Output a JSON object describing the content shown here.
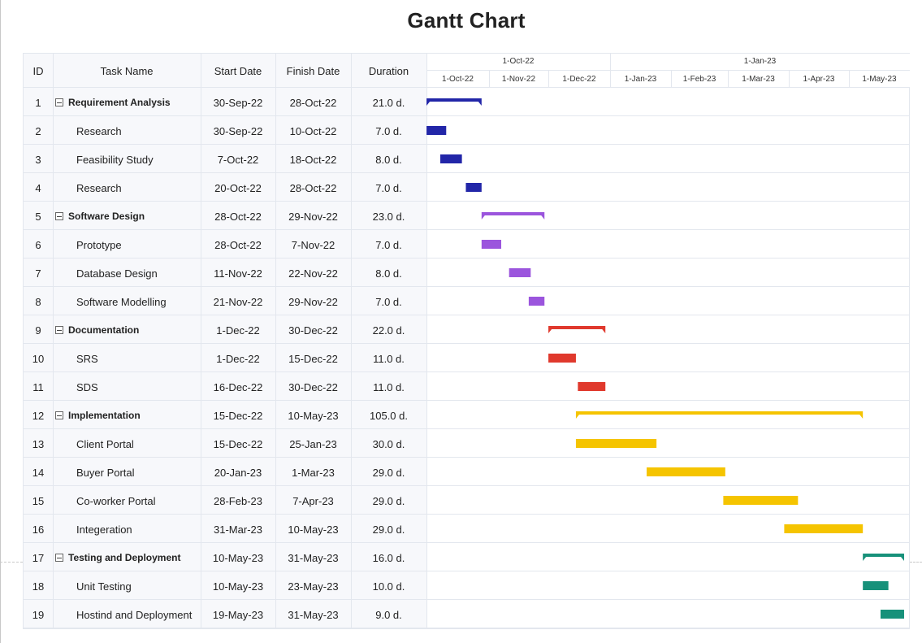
{
  "title": "Gantt Chart",
  "columns": {
    "id": "ID",
    "task": "Task Name",
    "start": "Start Date",
    "finish": "Finish Date",
    "duration": "Duration"
  },
  "timeline": {
    "top_ticks": [
      "1-Oct-22",
      "1-Jan-23"
    ],
    "bottom_ticks": [
      "1-Oct-22",
      "1-Nov-22",
      "1-Dec-22",
      "1-Jan-23",
      "1-Feb-23",
      "1-Mar-23",
      "1-Apr-23",
      "1-May-23"
    ]
  },
  "tasks": [
    {
      "id": "1",
      "name": "Requirement Analysis",
      "start": "30-Sep-22",
      "finish": "28-Oct-22",
      "duration": "21.0 d.",
      "summary": true
    },
    {
      "id": "2",
      "name": "Research",
      "start": "30-Sep-22",
      "finish": "10-Oct-22",
      "duration": "7.0 d.",
      "summary": false
    },
    {
      "id": "3",
      "name": "Feasibility Study",
      "start": "7-Oct-22",
      "finish": "18-Oct-22",
      "duration": "8.0 d.",
      "summary": false
    },
    {
      "id": "4",
      "name": "Research",
      "start": "20-Oct-22",
      "finish": "28-Oct-22",
      "duration": "7.0 d.",
      "summary": false
    },
    {
      "id": "5",
      "name": "Software Design",
      "start": "28-Oct-22",
      "finish": "29-Nov-22",
      "duration": "23.0 d.",
      "summary": true
    },
    {
      "id": "6",
      "name": "Prototype",
      "start": "28-Oct-22",
      "finish": "7-Nov-22",
      "duration": "7.0 d.",
      "summary": false
    },
    {
      "id": "7",
      "name": "Database Design",
      "start": "11-Nov-22",
      "finish": "22-Nov-22",
      "duration": "8.0 d.",
      "summary": false
    },
    {
      "id": "8",
      "name": "Software Modelling",
      "start": "21-Nov-22",
      "finish": "29-Nov-22",
      "duration": "7.0 d.",
      "summary": false
    },
    {
      "id": "9",
      "name": "Documentation",
      "start": "1-Dec-22",
      "finish": "30-Dec-22",
      "duration": "22.0 d.",
      "summary": true
    },
    {
      "id": "10",
      "name": "SRS",
      "start": "1-Dec-22",
      "finish": "15-Dec-22",
      "duration": "11.0 d.",
      "summary": false
    },
    {
      "id": "11",
      "name": "SDS",
      "start": "16-Dec-22",
      "finish": "30-Dec-22",
      "duration": "11.0 d.",
      "summary": false
    },
    {
      "id": "12",
      "name": "Implementation",
      "start": "15-Dec-22",
      "finish": "10-May-23",
      "duration": "105.0 d.",
      "summary": true
    },
    {
      "id": "13",
      "name": "Client Portal",
      "start": "15-Dec-22",
      "finish": "25-Jan-23",
      "duration": "30.0 d.",
      "summary": false
    },
    {
      "id": "14",
      "name": "Buyer Portal",
      "start": "20-Jan-23",
      "finish": "1-Mar-23",
      "duration": "29.0 d.",
      "summary": false
    },
    {
      "id": "15",
      "name": "Co-worker Portal",
      "start": "28-Feb-23",
      "finish": "7-Apr-23",
      "duration": "29.0 d.",
      "summary": false
    },
    {
      "id": "16",
      "name": "Integeration",
      "start": "31-Mar-23",
      "finish": "10-May-23",
      "duration": "29.0 d.",
      "summary": false
    },
    {
      "id": "17",
      "name": "Testing and Deployment",
      "start": "10-May-23",
      "finish": "31-May-23",
      "duration": "16.0 d.",
      "summary": true
    },
    {
      "id": "18",
      "name": "Unit Testing",
      "start": "10-May-23",
      "finish": "23-May-23",
      "duration": "10.0 d.",
      "summary": false
    },
    {
      "id": "19",
      "name": "Hostind and Deployment",
      "start": "19-May-23",
      "finish": "31-May-23",
      "duration": "9.0 d.",
      "summary": false
    }
  ],
  "chart_data": {
    "type": "gantt",
    "title": "Gantt Chart",
    "x_range": [
      "2022-09-30",
      "2023-06-01"
    ],
    "groups": [
      {
        "name": "Requirement Analysis",
        "color": "#2226a8",
        "start": "2022-09-30",
        "end": "2022-10-28",
        "tasks": [
          {
            "name": "Research",
            "start": "2022-09-30",
            "end": "2022-10-10"
          },
          {
            "name": "Feasibility Study",
            "start": "2022-10-07",
            "end": "2022-10-18"
          },
          {
            "name": "Research",
            "start": "2022-10-20",
            "end": "2022-10-28"
          }
        ]
      },
      {
        "name": "Software Design",
        "color": "#9b55dd",
        "start": "2022-10-28",
        "end": "2022-11-29",
        "tasks": [
          {
            "name": "Prototype",
            "start": "2022-10-28",
            "end": "2022-11-07"
          },
          {
            "name": "Database Design",
            "start": "2022-11-11",
            "end": "2022-11-22"
          },
          {
            "name": "Software Modelling",
            "start": "2022-11-21",
            "end": "2022-11-29"
          }
        ]
      },
      {
        "name": "Documentation",
        "color": "#e0392d",
        "start": "2022-12-01",
        "end": "2022-12-30",
        "tasks": [
          {
            "name": "SRS",
            "start": "2022-12-01",
            "end": "2022-12-15"
          },
          {
            "name": "SDS",
            "start": "2022-12-16",
            "end": "2022-12-30"
          }
        ]
      },
      {
        "name": "Implementation",
        "color": "#f5c400",
        "start": "2022-12-15",
        "end": "2023-05-10",
        "tasks": [
          {
            "name": "Client Portal",
            "start": "2022-12-15",
            "end": "2023-01-25"
          },
          {
            "name": "Buyer Portal",
            "start": "2023-01-20",
            "end": "2023-03-01"
          },
          {
            "name": "Co-worker Portal",
            "start": "2023-02-28",
            "end": "2023-04-07"
          },
          {
            "name": "Integeration",
            "start": "2023-03-31",
            "end": "2023-05-10"
          }
        ]
      },
      {
        "name": "Testing and Deployment",
        "color": "#17917a",
        "start": "2023-05-10",
        "end": "2023-05-31",
        "tasks": [
          {
            "name": "Unit Testing",
            "start": "2023-05-10",
            "end": "2023-05-23"
          },
          {
            "name": "Hostind and Deployment",
            "start": "2023-05-19",
            "end": "2023-05-31"
          }
        ]
      }
    ]
  }
}
